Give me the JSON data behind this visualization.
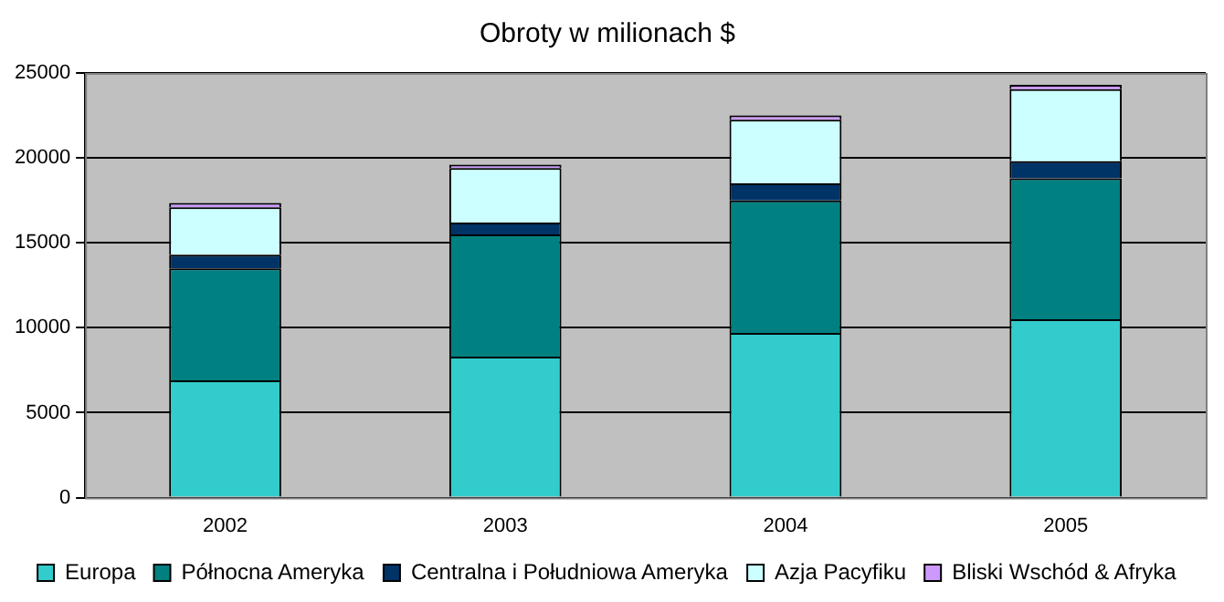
{
  "chart_data": {
    "type": "bar",
    "title": "Obroty w milionach $",
    "categories": [
      "2002",
      "2003",
      "2004",
      "2005"
    ],
    "stacked": true,
    "series": [
      {
        "name": "Europa",
        "color": "#33cccc",
        "values": [
          6900,
          8300,
          9700,
          10500
        ]
      },
      {
        "name": "Północna Ameryka",
        "color": "#008080",
        "values": [
          6600,
          7200,
          7800,
          8300
        ]
      },
      {
        "name": "Centralna i Południowa Ameryka",
        "color": "#003366",
        "values": [
          800,
          700,
          1000,
          1000
        ]
      },
      {
        "name": "Azja Pacyfiku",
        "color": "#ccffff",
        "values": [
          2800,
          3200,
          3750,
          4250
        ]
      },
      {
        "name": "Bliski Wschód & Afryka",
        "color": "#cc99ff",
        "values": [
          250,
          200,
          250,
          250
        ]
      }
    ],
    "ylim": [
      0,
      25000
    ],
    "yticks": [
      0,
      5000,
      10000,
      15000,
      20000,
      25000
    ],
    "grid": "y",
    "legend": "bottom"
  }
}
